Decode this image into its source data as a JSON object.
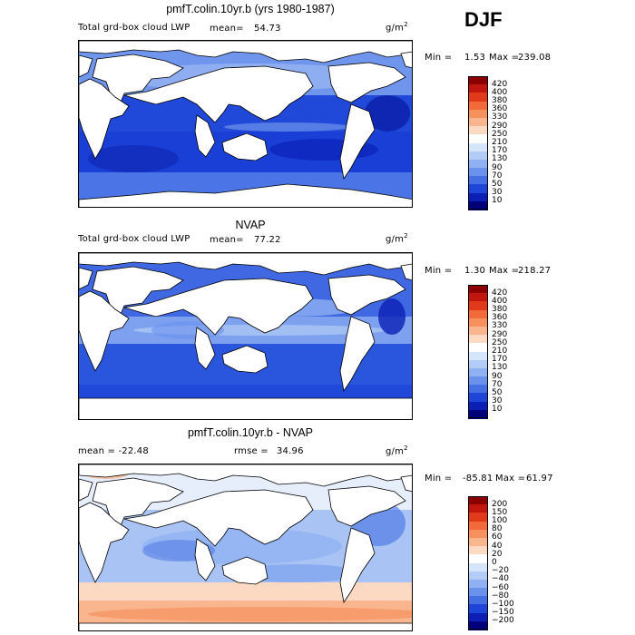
{
  "season": "DJF",
  "units_prefix": "g/m",
  "units_sup": "2",
  "panels": [
    {
      "title": "pmfT.colin.10yr.b (yrs 1980-1987)",
      "left_label": "Total grd-box cloud LWP",
      "mean_label": "mean=",
      "mean_value": "54.73",
      "min_label": "Min =",
      "min_value": "1.53",
      "max_label": "Max =",
      "max_value": "239.08"
    },
    {
      "title": "NVAP",
      "left_label": "Total grd-box cloud LWP",
      "mean_label": "mean=",
      "mean_value": "77.22",
      "min_label": "Min =",
      "min_value": "1.30",
      "max_label": "Max =",
      "max_value": "218.27"
    },
    {
      "title": "pmfT.colin.10yr.b - NVAP",
      "left_label": "mean = -22.48",
      "rmse_label": "rmse =",
      "rmse_value": "34.96",
      "min_label": "Min =",
      "min_value": "-85.81",
      "max_label": "Max =",
      "max_value": "61.97"
    }
  ],
  "colorbars": {
    "lwp": {
      "levels": [
        "420",
        "400",
        "380",
        "360",
        "330",
        "290",
        "250",
        "210",
        "170",
        "130",
        "90",
        "70",
        "50",
        "30",
        "10"
      ],
      "colors": [
        "#8b0000",
        "#c0160e",
        "#e03a1a",
        "#f26a3a",
        "#f6915e",
        "#f8b58e",
        "#fbd9c2",
        "#ffffff",
        "#d6e6fa",
        "#b2ccf6",
        "#8fb0f2",
        "#6a91ec",
        "#4570e3",
        "#1d46d9",
        "#0b1fb5",
        "#00007a"
      ]
    },
    "diff": {
      "levels": [
        "200",
        "150",
        "100",
        "80",
        "60",
        "40",
        "20",
        "0",
        "−20",
        "−40",
        "−60",
        "−80",
        "−100",
        "−150",
        "−200"
      ],
      "colors": [
        "#8b0000",
        "#c0160e",
        "#e03a1a",
        "#f26a3a",
        "#f6915e",
        "#f8b58e",
        "#fbd9c2",
        "#ffffff",
        "#d6e6fa",
        "#b2ccf6",
        "#8fb0f2",
        "#6a91ec",
        "#4570e3",
        "#1d46d9",
        "#0b1fb5",
        "#00007a"
      ]
    }
  },
  "chart_data": [
    {
      "type": "heatmap",
      "title": "pmfT.colin.10yr.b (yrs 1980-1987)",
      "subtitle": "Total grd-box cloud LWP",
      "units": "g/m2",
      "mean": 54.73,
      "min": 1.53,
      "max": 239.08,
      "contour_levels": [
        10,
        30,
        50,
        70,
        90,
        130,
        170,
        210,
        250,
        290,
        330,
        360,
        380,
        400,
        420
      ]
    },
    {
      "type": "heatmap",
      "title": "NVAP",
      "subtitle": "Total grd-box cloud LWP",
      "units": "g/m2",
      "mean": 77.22,
      "min": 1.3,
      "max": 218.27,
      "contour_levels": [
        10,
        30,
        50,
        70,
        90,
        130,
        170,
        210,
        250,
        290,
        330,
        360,
        380,
        400,
        420
      ]
    },
    {
      "type": "heatmap",
      "title": "pmfT.colin.10yr.b - NVAP",
      "units": "g/m2",
      "mean": -22.48,
      "rmse": 34.96,
      "min": -85.81,
      "max": 61.97,
      "contour_levels": [
        -200,
        -150,
        -100,
        -80,
        -60,
        -40,
        -20,
        0,
        20,
        40,
        60,
        80,
        100,
        150,
        200
      ]
    }
  ]
}
